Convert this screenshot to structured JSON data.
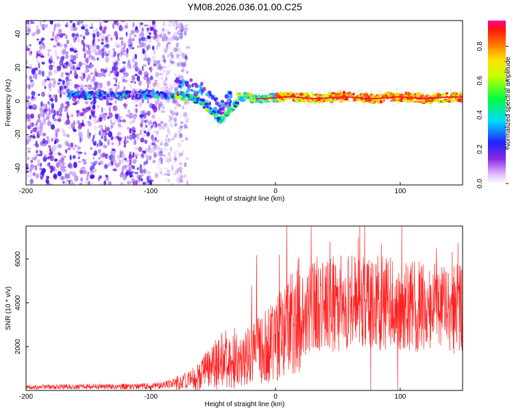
{
  "title": "YM08.2026.036.01.00.C25",
  "colorbar": {
    "label": "Normalized spectral amplitude",
    "ticks": [
      "0.0",
      "0.2",
      "0.4",
      "0.6",
      "0.8"
    ],
    "tick_values": [
      0.0,
      0.2,
      0.4,
      0.6,
      0.8
    ],
    "range": [
      0,
      0.95
    ]
  },
  "chart_data": [
    {
      "type": "heatmap",
      "xlabel": "Height of straight line (km)",
      "ylabel": "Frequency (Hz)",
      "xlim": [
        -200,
        150
      ],
      "ylim": [
        -50,
        48
      ],
      "xticks": [
        -200,
        -100,
        0,
        100
      ],
      "xtick_labels": [
        "-200",
        "-100",
        "0",
        "100"
      ],
      "yticks": [
        -40,
        -20,
        0,
        20,
        40
      ],
      "ytick_labels": [
        "-40",
        "-20",
        "0",
        "20",
        "40"
      ],
      "features": {
        "noise_region_x": [
          -200,
          -75
        ],
        "signal_line_freq_hz": 2,
        "dip_min_freq_hz": -12,
        "dip_at_km": -45
      }
    },
    {
      "type": "line",
      "xlabel": "Height of straight line (km)",
      "ylabel": "SNR (10 * v/v)",
      "xlim": [
        -200,
        150
      ],
      "ylim": [
        0,
        7500
      ],
      "xticks": [
        -200,
        -100,
        0,
        100
      ],
      "xtick_labels": [
        "-200",
        "-100",
        "0",
        "100"
      ],
      "yticks": [
        2000,
        4000,
        6000
      ],
      "ytick_labels": [
        "2000",
        "4000",
        "6000"
      ],
      "color": "#ff2020",
      "envelope": {
        "x": [
          -200,
          -100,
          -75,
          -60,
          -50,
          -40,
          -30,
          -20,
          -10,
          0,
          10,
          20,
          30,
          40,
          60,
          80,
          100,
          120,
          150
        ],
        "y": [
          150,
          200,
          350,
          700,
          1100,
          1400,
          1300,
          1600,
          2000,
          2300,
          2800,
          3400,
          3800,
          4000,
          4000,
          4000,
          3900,
          3800,
          3700
        ]
      }
    }
  ]
}
